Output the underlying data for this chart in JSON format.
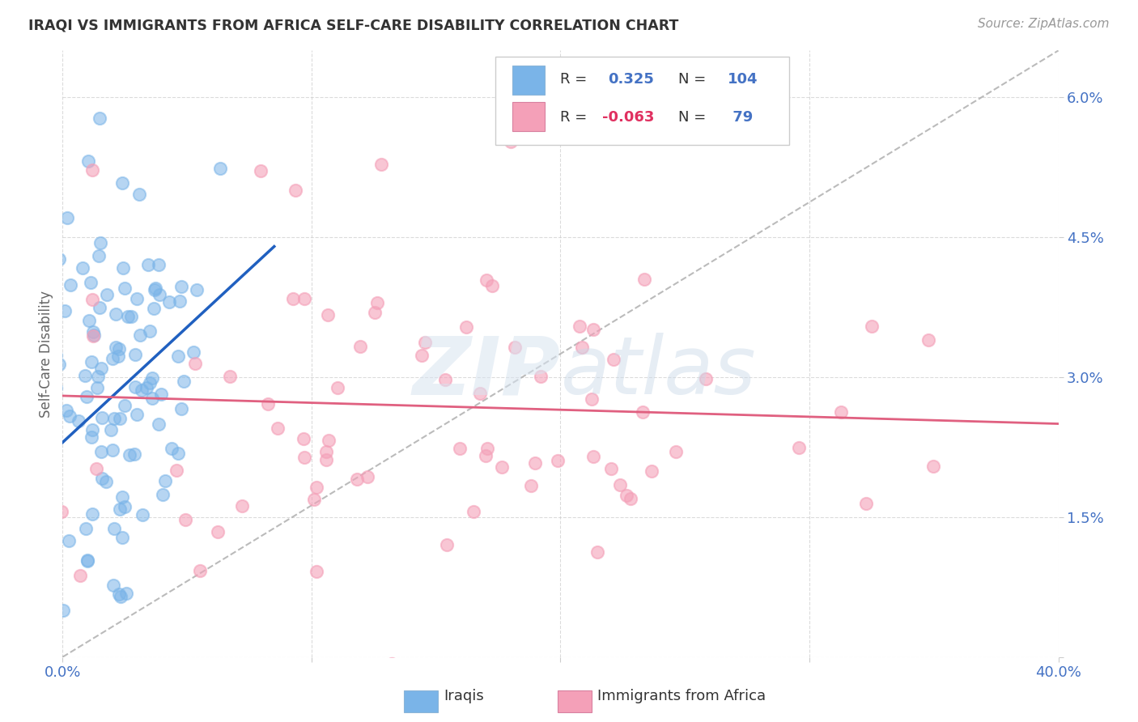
{
  "title": "IRAQI VS IMMIGRANTS FROM AFRICA SELF-CARE DISABILITY CORRELATION CHART",
  "source": "Source: ZipAtlas.com",
  "ylabel": "Self-Care Disability",
  "xlim": [
    0.0,
    0.4
  ],
  "ylim": [
    0.0,
    0.065
  ],
  "xtick_positions": [
    0.0,
    0.1,
    0.2,
    0.3,
    0.4
  ],
  "xtick_labels": [
    "0.0%",
    "",
    "",
    "",
    "40.0%"
  ],
  "ytick_positions": [
    0.0,
    0.015,
    0.03,
    0.045,
    0.06
  ],
  "ytick_labels": [
    "",
    "1.5%",
    "3.0%",
    "4.5%",
    "6.0%"
  ],
  "iraqis_color": "#7ab4e8",
  "africa_color": "#f4a0b8",
  "iraqis_line_color": "#2060c0",
  "africa_line_color": "#e06080",
  "iraqis_R": 0.325,
  "iraqis_N": 104,
  "africa_R": -0.063,
  "africa_N": 79,
  "watermark": "ZIPatlas",
  "background_color": "#ffffff",
  "grid_color": "#cccccc",
  "axis_color": "#4472c4",
  "title_color": "#333333",
  "source_color": "#999999",
  "ylabel_color": "#666666"
}
